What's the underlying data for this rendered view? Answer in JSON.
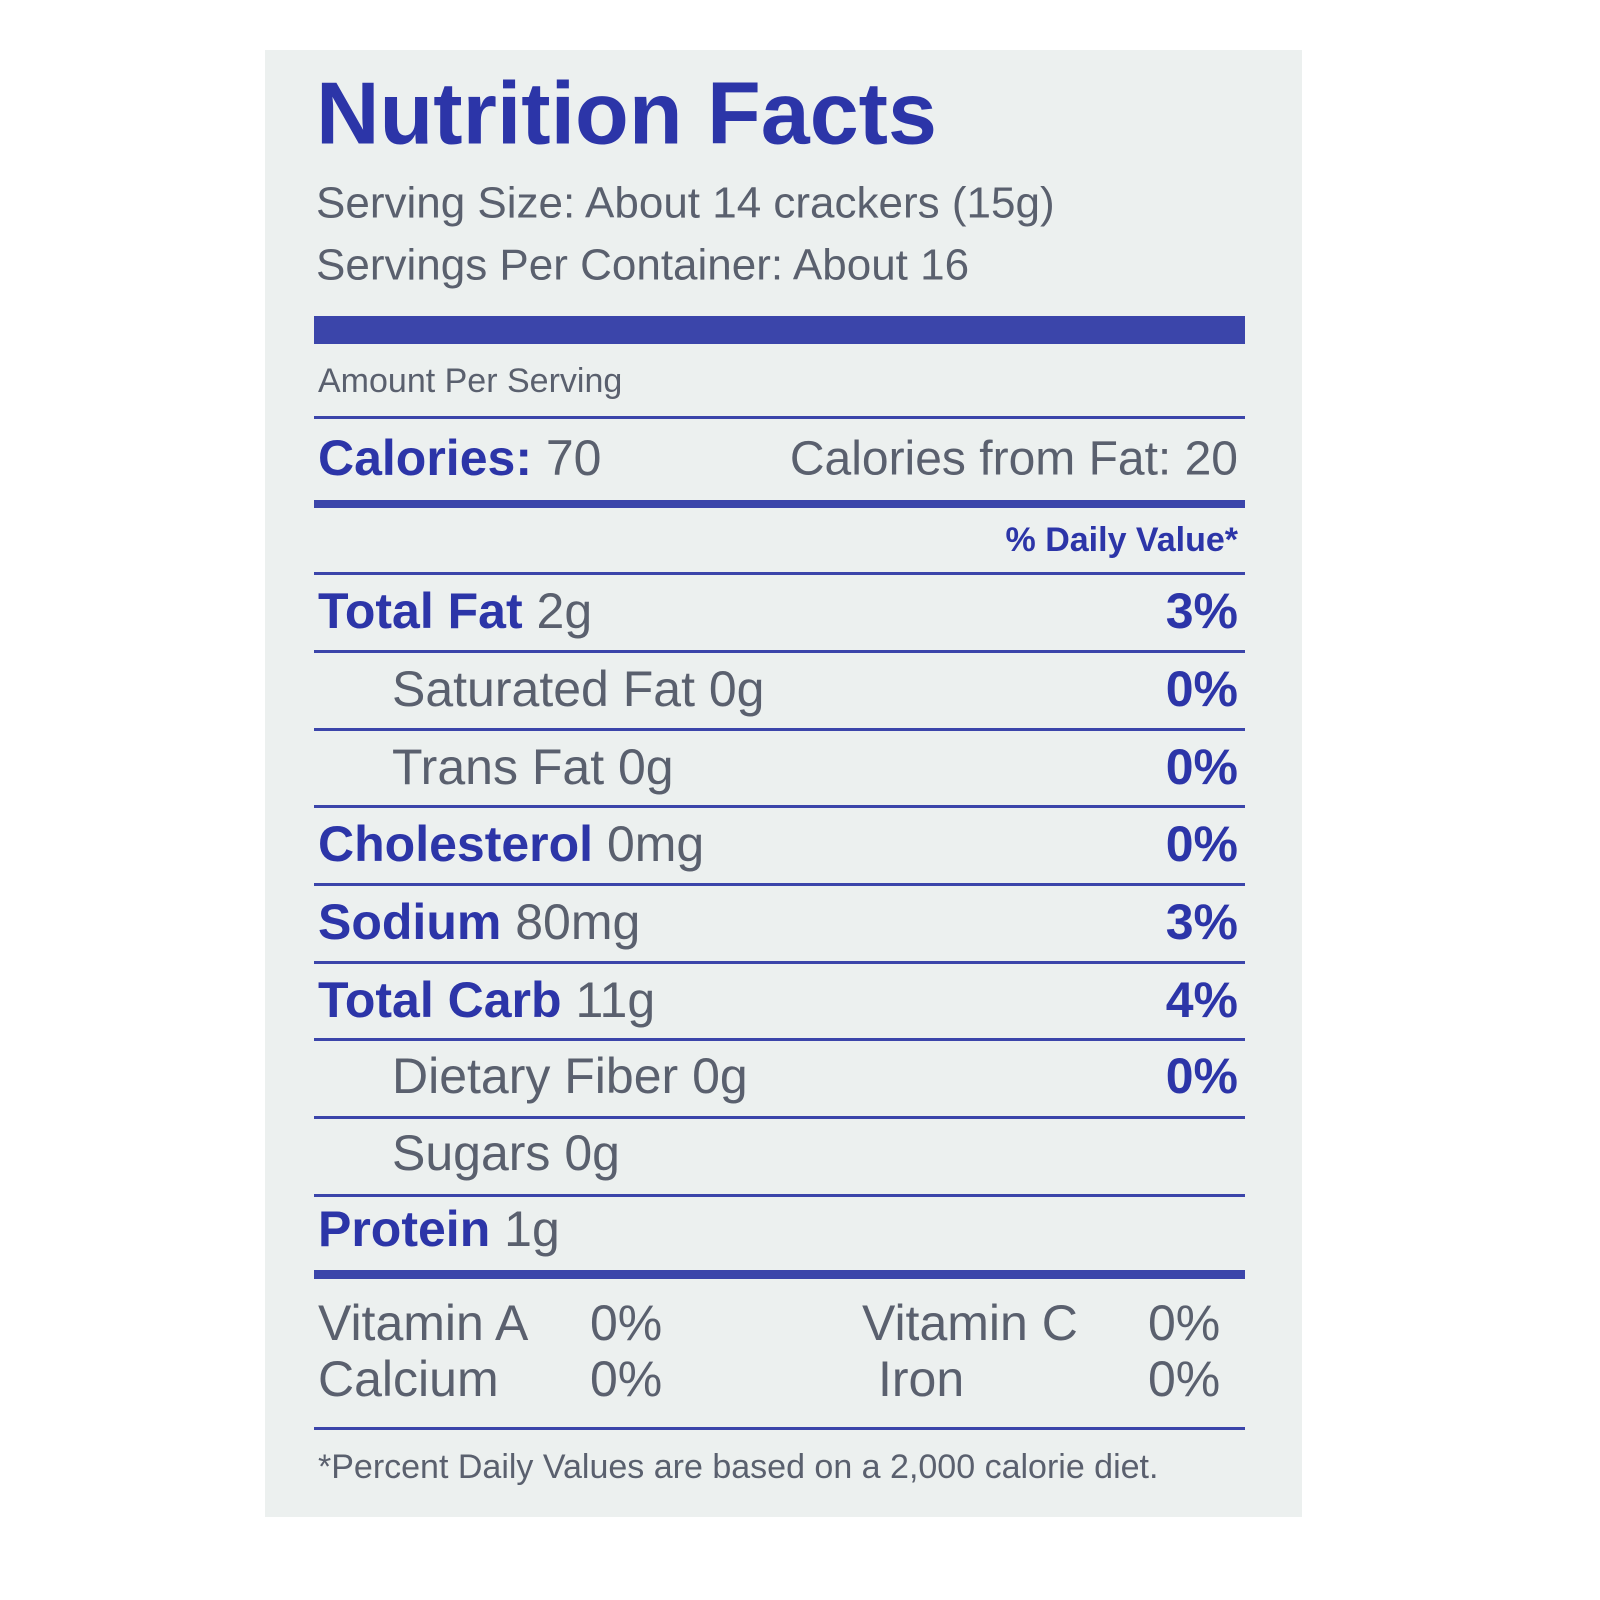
{
  "title": "Nutrition Facts",
  "serving_size": "Serving Size: About 14 crackers (15g)",
  "servings_per_container": "Servings Per Container: About 16",
  "amount_per_serving": "Amount Per Serving",
  "calories": {
    "label": "Calories:",
    "value": "70",
    "from_fat": "Calories from Fat: 20"
  },
  "daily_value_header": "% Daily Value*",
  "nutrients": [
    {
      "name": "Total Fat",
      "amount": "2g",
      "dv": "3%"
    },
    {
      "name": "Saturated Fat",
      "amount": "0g",
      "dv": "0%"
    },
    {
      "name": "Trans Fat",
      "amount": "0g",
      "dv": "0%"
    },
    {
      "name": "Cholesterol",
      "amount": "0mg",
      "dv": "0%"
    },
    {
      "name": "Sodium",
      "amount": "80mg",
      "dv": "3%"
    },
    {
      "name": "Total Carb",
      "amount": "11g",
      "dv": "4%"
    },
    {
      "name": "Dietary Fiber",
      "amount": "0g",
      "dv": "0%"
    },
    {
      "name": "Sugars",
      "amount": "0g"
    },
    {
      "name": "Protein",
      "amount": "1g"
    }
  ],
  "vitamins": [
    {
      "name": "Vitamin A",
      "dv": "0%"
    },
    {
      "name": "Vitamin C",
      "dv": "0%"
    },
    {
      "name": "Calcium",
      "dv": "0%"
    },
    {
      "name": "Iron",
      "dv": "0%"
    }
  ],
  "footnote": "*Percent Daily Values are based on a 2,000 calorie diet."
}
